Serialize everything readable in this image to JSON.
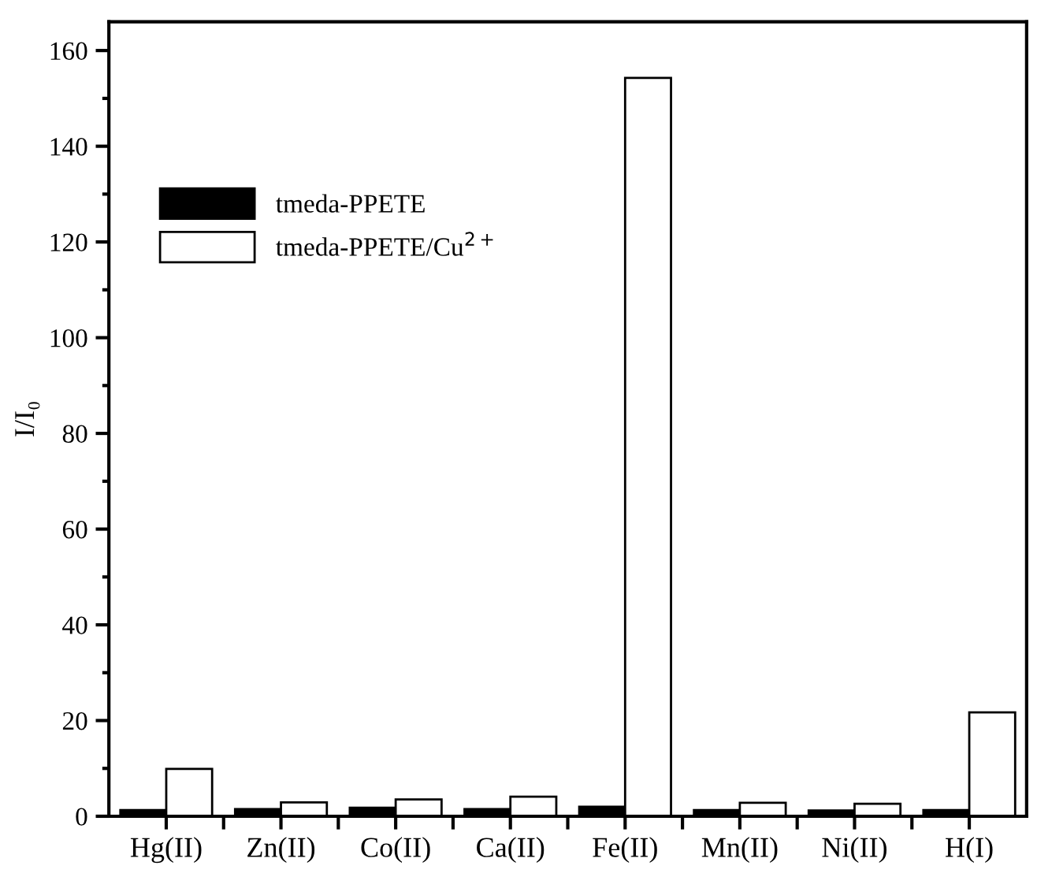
{
  "chart_data": {
    "type": "bar",
    "ylabel": "I/I₀",
    "categories": [
      "Hg(II)",
      "Zn(II)",
      "Co(II)",
      "Ca(II)",
      "Fe(II)",
      "Mn(II)",
      "Ni(II)",
      "H(I)"
    ],
    "series": [
      {
        "name": "tmeda-PPETE",
        "color": "#000000",
        "values": [
          1.3,
          1.5,
          1.8,
          1.5,
          2.0,
          1.3,
          1.2,
          1.3
        ]
      },
      {
        "name": "tmeda-PPETE/Cu$^{2+}$",
        "color": "#ffffff",
        "values": [
          9.9,
          2.9,
          3.5,
          4.1,
          154.3,
          2.8,
          2.6,
          21.7
        ]
      }
    ],
    "ylim": [
      0,
      166
    ],
    "yticks": [
      0,
      {
        "value": 10,
        "label": null
      },
      20,
      {
        "value": 30,
        "label": null
      },
      40,
      {
        "value": 50,
        "label": null
      },
      60,
      {
        "value": 70,
        "label": null
      },
      80,
      {
        "value": 90,
        "label": null
      },
      100,
      {
        "value": 110,
        "label": null
      },
      120,
      {
        "value": 130,
        "label": null
      },
      140,
      {
        "value": 150,
        "label": null
      },
      160
    ],
    "legend": "top left",
    "grid": false
  }
}
